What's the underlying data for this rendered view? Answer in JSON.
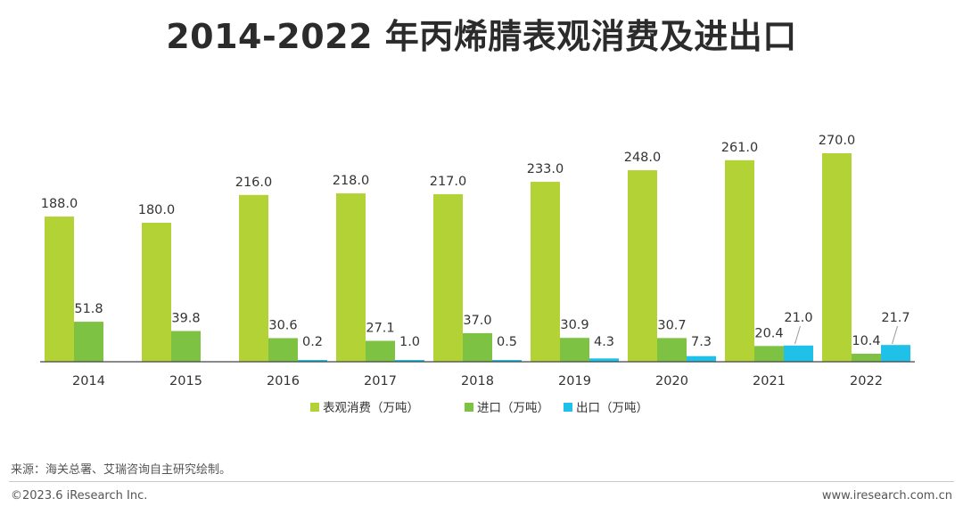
{
  "page": {
    "source_note": "来源：海关总署、艾瑞咨询自主研究绘制。",
    "copyright": "©2023.6 iResearch Inc.",
    "website": "www.iresearch.com.cn"
  },
  "chart_data": {
    "type": "bar",
    "title": "2014-2022 年丙烯腈表观消费及进出口",
    "xlabel": "",
    "ylabel": "",
    "categories": [
      "2014",
      "2015",
      "2016",
      "2017",
      "2018",
      "2019",
      "2020",
      "2021",
      "2022"
    ],
    "series": [
      {
        "name": "表观消费（万吨）",
        "color": "#b2d235",
        "values": [
          188.0,
          180.0,
          216.0,
          218.0,
          217.0,
          233.0,
          248.0,
          261.0,
          270.0
        ]
      },
      {
        "name": "进口（万吨）",
        "color": "#7dc242",
        "values": [
          51.8,
          39.8,
          30.6,
          27.1,
          37.0,
          30.9,
          30.7,
          20.4,
          10.4
        ]
      },
      {
        "name": "出口（万吨）",
        "color": "#1fc1e8",
        "values": [
          0.0,
          0.0,
          0.2,
          1.0,
          0.5,
          4.3,
          7.3,
          21.0,
          21.7
        ]
      }
    ],
    "data_labels": [
      [
        "188.0",
        "180.0",
        "216.0",
        "218.0",
        "217.0",
        "233.0",
        "248.0",
        "261.0",
        "270.0"
      ],
      [
        "51.8",
        "39.8",
        "30.6",
        "27.1",
        "37.0",
        "30.9",
        "30.7",
        "20.4",
        "10.4"
      ],
      [
        "",
        "",
        "0.2",
        "1.0",
        "0.5",
        "4.3",
        "7.3",
        "21.0",
        "21.7"
      ]
    ],
    "ylim": [
      0,
      270
    ],
    "grid": false,
    "legend_position": "bottom"
  }
}
